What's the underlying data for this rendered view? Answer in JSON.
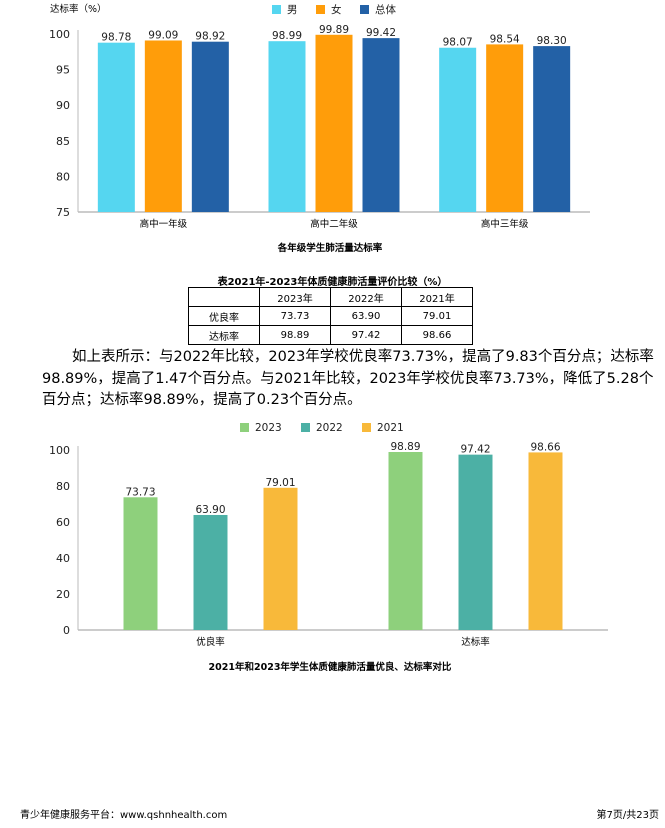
{
  "chart1": {
    "type": "bar",
    "title": "各年级学生肺活量达标率",
    "ylabel": "达标率（%）",
    "ylim": [
      75,
      100
    ],
    "yticks": [
      75,
      80,
      85,
      90,
      95,
      100
    ],
    "categories": [
      "高中一年级",
      "高中二年级",
      "高中三年级"
    ],
    "legend_position": "top",
    "series": [
      {
        "name": "男",
        "color": "#55d6f0",
        "values": [
          98.78,
          98.99,
          98.07
        ]
      },
      {
        "name": "女",
        "color": "#ff9d0a",
        "values": [
          99.09,
          99.89,
          98.54
        ]
      },
      {
        "name": "总体",
        "color": "#2361a6",
        "values": [
          98.92,
          99.42,
          98.3
        ]
      }
    ]
  },
  "table": {
    "caption": "表2021年-2023年体质健康肺活量评价比较（%）",
    "headers": [
      "",
      "2023年",
      "2022年",
      "2021年"
    ],
    "rows": [
      [
        "优良率",
        "73.73",
        "63.90",
        "79.01"
      ],
      [
        "达标率",
        "98.89",
        "97.42",
        "98.66"
      ]
    ]
  },
  "paragraph": "如上表所示：与2022年比较，2023年学校优良率73.73%，提高了9.83个百分点；达标率98.89%，提高了1.47个百分点。与2021年比较，2023年学校优良率73.73%，降低了5.28个百分点；达标率98.89%，提高了0.23个百分点。",
  "chart2": {
    "type": "bar",
    "title": "2021年和2023年学生体质健康肺活量优良、达标率对比",
    "ylim": [
      0,
      100
    ],
    "yticks": [
      0,
      20,
      40,
      60,
      80,
      100
    ],
    "categories": [
      "优良率",
      "达标率"
    ],
    "legend_position": "top",
    "series": [
      {
        "name": "2023",
        "color": "#8ed07c",
        "values": [
          73.73,
          98.89
        ]
      },
      {
        "name": "2022",
        "color": "#4cb0a5",
        "values": [
          63.9,
          97.42
        ]
      },
      {
        "name": "2021",
        "color": "#f8b93a",
        "values": [
          79.01,
          98.66
        ]
      }
    ]
  },
  "footer": {
    "left": "青少年健康服务平台：www.qshnhealth.com",
    "right": "第7页/共23页"
  }
}
